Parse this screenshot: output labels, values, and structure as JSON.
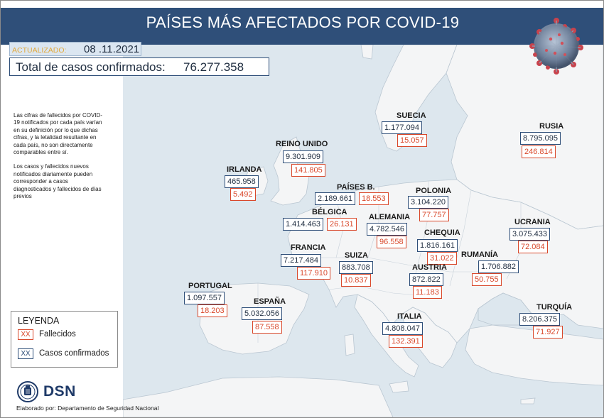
{
  "title": "PAÍSES MÁS AFECTADOS POR COVID-19",
  "updated": {
    "label": "ACTUALIZADO:",
    "date": "08 .11.2021"
  },
  "total": {
    "label": "Total de casos confirmados:",
    "value": "76.277.358"
  },
  "notes": [
    "Las cifras de fallecidos por COVID-19 notificados por cada país varían en su definición por lo que dichas cifras, y la letalidad resultante en cada país, no son directamente comparables entre sí.",
    "Los casos y fallecidos nuevos notificados diariamente pueden corresponder a casos diagnosticados y fallecidos de días previos"
  ],
  "legend": {
    "title": "LEYENDA",
    "swatch": "XX",
    "deaths_label": "Fallecidos",
    "cases_label": "Casos confirmados"
  },
  "logo": {
    "text": "DSN"
  },
  "credit": "Elaborado por: Departamento de Seguridad Nacional",
  "colors": {
    "title_bar": "#2f4f79",
    "cases_border": "#2f4f79",
    "deaths": "#d9482b",
    "sea": "#dde7ee",
    "land": "#f4f5f6",
    "date_label": "#e2a93c"
  },
  "countries": {
    "suecia": {
      "name": "SUECIA",
      "cases": "1.177.094",
      "deaths": "15.057"
    },
    "rusia": {
      "name": "RUSIA",
      "cases": "8.795.095",
      "deaths": "246.814"
    },
    "reino_unido": {
      "name": "REINO UNIDO",
      "cases": "9.301.909",
      "deaths": "141.805"
    },
    "irlanda": {
      "name": "IRLANDA",
      "cases": "465.958",
      "deaths": "5.492"
    },
    "paises_b": {
      "name": "PAÍSES B.",
      "cases": "2.189.661",
      "deaths": "18.553"
    },
    "polonia": {
      "name": "POLONIA",
      "cases": "3.104.220",
      "deaths": "77.757"
    },
    "belgica": {
      "name": "BÉLGICA",
      "cases": "1.414.463",
      "deaths": "26.131"
    },
    "alemania": {
      "name": "ALEMANIA",
      "cases": "4.782.546",
      "deaths": "96.558"
    },
    "ucrania": {
      "name": "UCRANIA",
      "cases": "3.075.433",
      "deaths": "72.084"
    },
    "chequia": {
      "name": "CHEQUIA",
      "cases": "1.816.161",
      "deaths": "31.022"
    },
    "francia": {
      "name": "FRANCIA",
      "cases": "7.217.484",
      "deaths": "117.910"
    },
    "suiza": {
      "name": "SUIZA",
      "cases": "883.708",
      "deaths": "10.837"
    },
    "rumania": {
      "name": "RUMANÍA",
      "cases": "1.706.882",
      "deaths": "50.755"
    },
    "austria": {
      "name": "AUSTRIA",
      "cases": "872.822",
      "deaths": "11.183"
    },
    "portugal": {
      "name": "PORTUGAL",
      "cases": "1.097.557",
      "deaths": "18.203"
    },
    "espana": {
      "name": "ESPAÑA",
      "cases": "5.032.056",
      "deaths": "87.558"
    },
    "turquia": {
      "name": "TURQUÍA",
      "cases": "8.206.375",
      "deaths": "71.927"
    },
    "italia": {
      "name": "ITALIA",
      "cases": "4.808.047",
      "deaths": "132.391"
    }
  }
}
